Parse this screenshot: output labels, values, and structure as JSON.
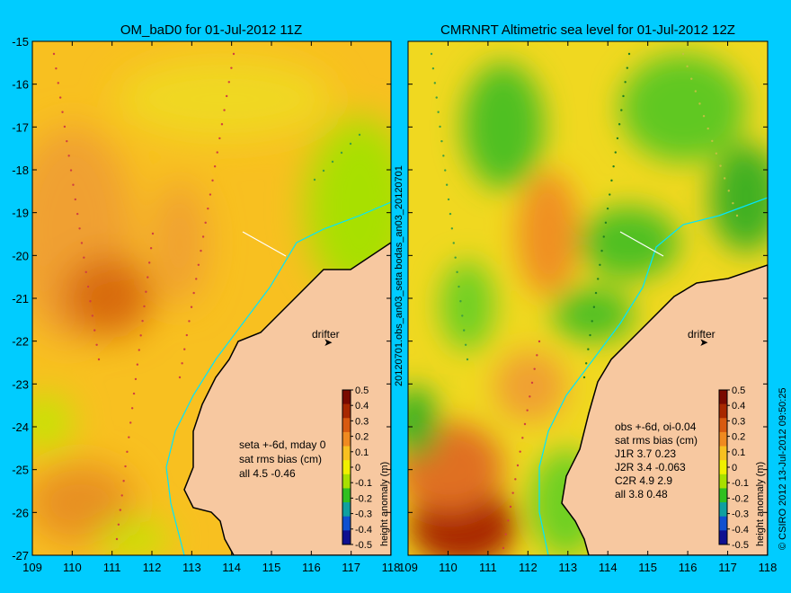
{
  "page": {
    "background": "#00ccff",
    "land_color": "#f7c8a0",
    "coast_color": "#000000",
    "isobath_color": "#00e5ff"
  },
  "side_label_vertical": "20120701.obs_an03_seta    bodas_an03_20120701",
  "credit_vertical": "© CSIRO 2012   13-Jul-2012 09:50:25",
  "colorbar": {
    "ticks": [
      "0.5",
      "0.4",
      "0.3",
      "0.2",
      "0.1",
      "0",
      "-0.1",
      "-0.2",
      "-0.3",
      "-0.4",
      "-0.5"
    ],
    "label": "height anomaly (m)",
    "colors": [
      "#7a0a00",
      "#a82800",
      "#d85a10",
      "#f08a20",
      "#f8c020",
      "#f0f000",
      "#a8e000",
      "#30c020",
      "#10a0a0",
      "#1050d0",
      "#101090"
    ]
  },
  "chart_data": [
    {
      "type": "heatmap",
      "title": "OM_baD0 for 01-Jul-2012 11Z",
      "xlim": [
        109,
        118
      ],
      "ylim": [
        -27,
        -15
      ],
      "xticks": [
        "109",
        "110",
        "111",
        "112",
        "113",
        "114",
        "115",
        "116",
        "117",
        "118"
      ],
      "yticks": [
        "-15",
        "-16",
        "-17",
        "-18",
        "-19",
        "-20",
        "-21",
        "-22",
        "-23",
        "-24",
        "-25",
        "-26",
        "-27"
      ],
      "drifter_label": "drifter",
      "annotation": [
        "seta +-6d, mday 0",
        "sat rms bias (cm)",
        "all 4.5 -0.46"
      ]
    },
    {
      "type": "heatmap",
      "title": "CMRNRT Altimetric sea level  for 01-Jul-2012 12Z",
      "xlim": [
        109,
        118
      ],
      "ylim": [
        -27,
        -15
      ],
      "xticks": [
        "109",
        "110",
        "111",
        "112",
        "113",
        "114",
        "115",
        "116",
        "117",
        "118"
      ],
      "yticks": [],
      "drifter_label": "drifter",
      "annotation": [
        "obs +-6d, oi-0.04",
        "sat rms bias (cm)",
        "J1R   3.7 0.23",
        "J2R   3.4 -0.063",
        "C2R   4.9 2.9",
        "all 3.8 0.48"
      ]
    }
  ]
}
